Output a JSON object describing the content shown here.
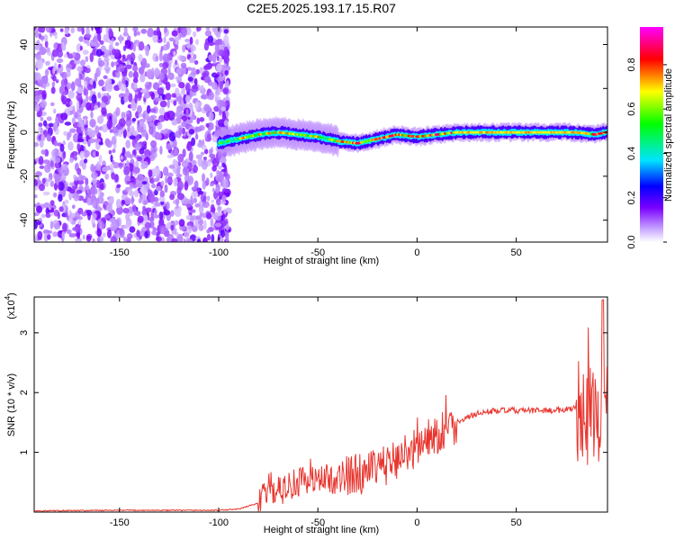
{
  "title": "C2E5.2025.193.17.15.R07",
  "chart_data": [
    {
      "type": "heatmap",
      "xlabel": "Height of straight line (km)",
      "ylabel": "Frequency (Hz)",
      "xlim": [
        -193,
        96
      ],
      "ylim": [
        -50,
        48
      ],
      "xticks": [
        "-150",
        "-100",
        "-50",
        "0",
        "50"
      ],
      "yticks": [
        "-40",
        "-20",
        "0",
        "20",
        "40"
      ],
      "colorbar": {
        "label": "Normalized spectral amplitude",
        "range": [
          0,
          0.97
        ],
        "ticks": [
          "0.0",
          "0.2",
          "0.4",
          "0.6",
          "0.8"
        ],
        "colors": [
          "#ffffff",
          "#c9a8ff",
          "#7a00ff",
          "#0000ff",
          "#00e5ff",
          "#00ff00",
          "#ffff00",
          "#ff0000",
          "#ff00ff"
        ]
      },
      "ridge": {
        "description_x": [
          -100,
          -90,
          -80,
          -70,
          -60,
          -50,
          -40,
          -30,
          -20,
          -10,
          0,
          10,
          20,
          40,
          60,
          80,
          90,
          95
        ],
        "frequency_hz": [
          -5,
          -3,
          -1,
          0,
          -1,
          -2,
          -4,
          -5,
          -3,
          -1,
          -2,
          -1,
          0,
          0,
          0,
          0,
          -1,
          0
        ]
      },
      "noise_region_x": [
        -193,
        -95
      ]
    },
    {
      "type": "line",
      "xlabel": "Height of straight line (km)",
      "ylabel": "SNR (10 * v/v)",
      "multiplier_label": "(x10",
      "multiplier_exp": "4",
      "xlim": [
        -193,
        96
      ],
      "ylim": [
        0,
        3.6
      ],
      "xticks": [
        "-150",
        "-100",
        "-50",
        "0",
        "50"
      ],
      "yticks": [
        "1",
        "2",
        "3"
      ],
      "color": "#e8352e",
      "series": [
        {
          "x": [
            -193,
            -150,
            -100,
            -90,
            -80,
            -75,
            -70,
            -60,
            -50,
            -40,
            -30,
            -20,
            -10,
            0,
            10,
            20,
            30,
            40,
            50,
            60,
            70,
            80,
            85,
            90,
            95
          ],
          "values": [
            0.02,
            0.03,
            0.03,
            0.05,
            0.15,
            0.4,
            0.35,
            0.5,
            0.55,
            0.55,
            0.65,
            0.7,
            0.9,
            1.1,
            1.3,
            1.5,
            1.65,
            1.7,
            1.7,
            1.7,
            1.7,
            1.75,
            1.6,
            1.7,
            1.75
          ]
        }
      ]
    }
  ]
}
